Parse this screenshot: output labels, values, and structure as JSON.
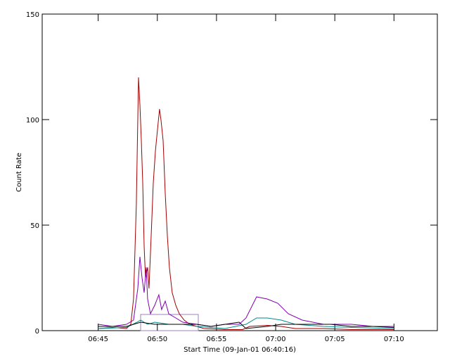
{
  "chart_data": {
    "type": "line",
    "xlabel": "Start Time (09-Jan-01 06:40:16)",
    "ylabel": "Count Rate",
    "xlim": [
      0,
      33.4
    ],
    "ylim": [
      0,
      150
    ],
    "xticks": [
      {
        "value": 4.733,
        "label": "06:45"
      },
      {
        "value": 9.733,
        "label": "06:50"
      },
      {
        "value": 14.733,
        "label": "06:55"
      },
      {
        "value": 19.733,
        "label": "07:00"
      },
      {
        "value": 24.733,
        "label": "07:05"
      },
      {
        "value": 29.733,
        "label": "07:10"
      }
    ],
    "yticks": [
      0,
      50,
      100,
      150
    ],
    "series": [
      {
        "color": "#a00000",
        "x": [
          4.75,
          5.94,
          7.13,
          7.49,
          7.72,
          7.96,
          8.14,
          8.26,
          8.38,
          8.5,
          8.62,
          8.73,
          8.91,
          9.03,
          9.21,
          9.39,
          9.57,
          9.74,
          9.92,
          10.04,
          10.22,
          10.4,
          10.58,
          10.75,
          10.99,
          11.29,
          11.59,
          12.0,
          12.48,
          13.07,
          13.67,
          15.45,
          16.93,
          17.53,
          19.01,
          20.2,
          21.39,
          23.77,
          26.14,
          29.71
        ],
        "values": [
          1,
          1.5,
          1,
          3,
          15,
          60,
          120,
          107,
          90,
          70,
          40,
          25,
          30,
          20,
          45,
          70,
          85,
          95,
          105,
          100,
          90,
          65,
          45,
          30,
          18,
          12,
          8,
          5,
          3,
          2,
          1,
          0.5,
          0.5,
          2,
          2.5,
          2,
          1,
          1,
          0.5,
          0.5
        ]
      },
      {
        "color": "#8000b0",
        "x": [
          4.75,
          5.94,
          7.13,
          7.72,
          8.08,
          8.26,
          8.44,
          8.62,
          8.79,
          8.91,
          9.15,
          9.51,
          9.86,
          10.1,
          10.4,
          10.7,
          11.29,
          11.88,
          13.07,
          14.26,
          15.45,
          16.64,
          17.23,
          18.12,
          19.01,
          19.91,
          20.8,
          21.98,
          23.77,
          26.14,
          27.93,
          29.71
        ],
        "values": [
          3,
          2,
          3,
          5,
          20,
          35,
          25,
          18,
          30,
          15,
          8,
          12,
          17,
          10,
          14,
          8,
          6,
          4,
          3,
          2,
          3,
          3,
          6,
          16,
          15,
          13,
          8,
          5,
          3,
          3,
          2,
          2
        ]
      },
      {
        "color": "#008b8b",
        "x": [
          4.75,
          7.13,
          8.02,
          8.32,
          8.91,
          9.51,
          10.7,
          11.88,
          13.07,
          15.45,
          17.23,
          18.12,
          19.01,
          20.2,
          21.39,
          23.77,
          26.14,
          29.71
        ],
        "values": [
          1,
          1.5,
          4,
          5,
          3,
          4,
          3,
          3,
          2,
          1,
          3,
          6,
          6,
          5,
          3,
          2,
          1.5,
          1
        ]
      },
      {
        "color": "#000000",
        "x": [
          4.75,
          7.13,
          8.32,
          9.51,
          10.7,
          13.07,
          14.26,
          16.64,
          17.23,
          19.01,
          20.2,
          21.98,
          24.36,
          26.14,
          27.93,
          29.71
        ],
        "values": [
          2,
          2,
          4,
          3,
          3,
          3,
          2,
          4,
          1,
          2,
          3,
          3,
          3,
          2,
          2,
          1.5
        ]
      }
    ]
  }
}
